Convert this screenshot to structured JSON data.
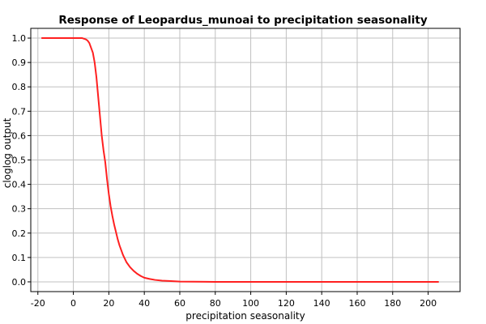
{
  "chart_data": {
    "type": "line",
    "title": "Response of Leopardus_munoai to precipitation seasonality",
    "xlabel": "precipitation seasonality",
    "ylabel": "cloglog output",
    "xlim": [
      -24,
      218
    ],
    "ylim": [
      -0.04,
      1.04
    ],
    "xticks": [
      -20,
      0,
      20,
      40,
      60,
      80,
      100,
      120,
      140,
      160,
      180,
      200
    ],
    "yticks": [
      0.0,
      0.1,
      0.2,
      0.3,
      0.4,
      0.5,
      0.6,
      0.7,
      0.8,
      0.9,
      1.0
    ],
    "xtick_labels": [
      "-20",
      "0",
      "20",
      "40",
      "60",
      "80",
      "100",
      "120",
      "140",
      "160",
      "180",
      "200"
    ],
    "ytick_labels": [
      "0.0",
      "0.1",
      "0.2",
      "0.3",
      "0.4",
      "0.5",
      "0.6",
      "0.7",
      "0.8",
      "0.9",
      "1.0"
    ],
    "grid": true,
    "series": [
      {
        "color": "#ff2020",
        "x": [
          -18,
          -10,
          0,
          5,
          7,
          8,
          9,
          10,
          11,
          12,
          13,
          14,
          15,
          16,
          17,
          18,
          19,
          20,
          21,
          22,
          23,
          24,
          25,
          26,
          27,
          28,
          30,
          32,
          34,
          36,
          38,
          40,
          43,
          46,
          50,
          55,
          60,
          80,
          100,
          150,
          206
        ],
        "y": [
          1.0,
          1.0,
          1.0,
          1.0,
          0.995,
          0.99,
          0.98,
          0.96,
          0.94,
          0.9,
          0.84,
          0.76,
          0.68,
          0.6,
          0.54,
          0.49,
          0.42,
          0.36,
          0.31,
          0.27,
          0.235,
          0.205,
          0.175,
          0.15,
          0.13,
          0.11,
          0.08,
          0.06,
          0.045,
          0.033,
          0.024,
          0.017,
          0.012,
          0.008,
          0.005,
          0.003,
          0.001,
          0.0,
          0.0,
          0.0,
          0.0
        ]
      }
    ]
  }
}
